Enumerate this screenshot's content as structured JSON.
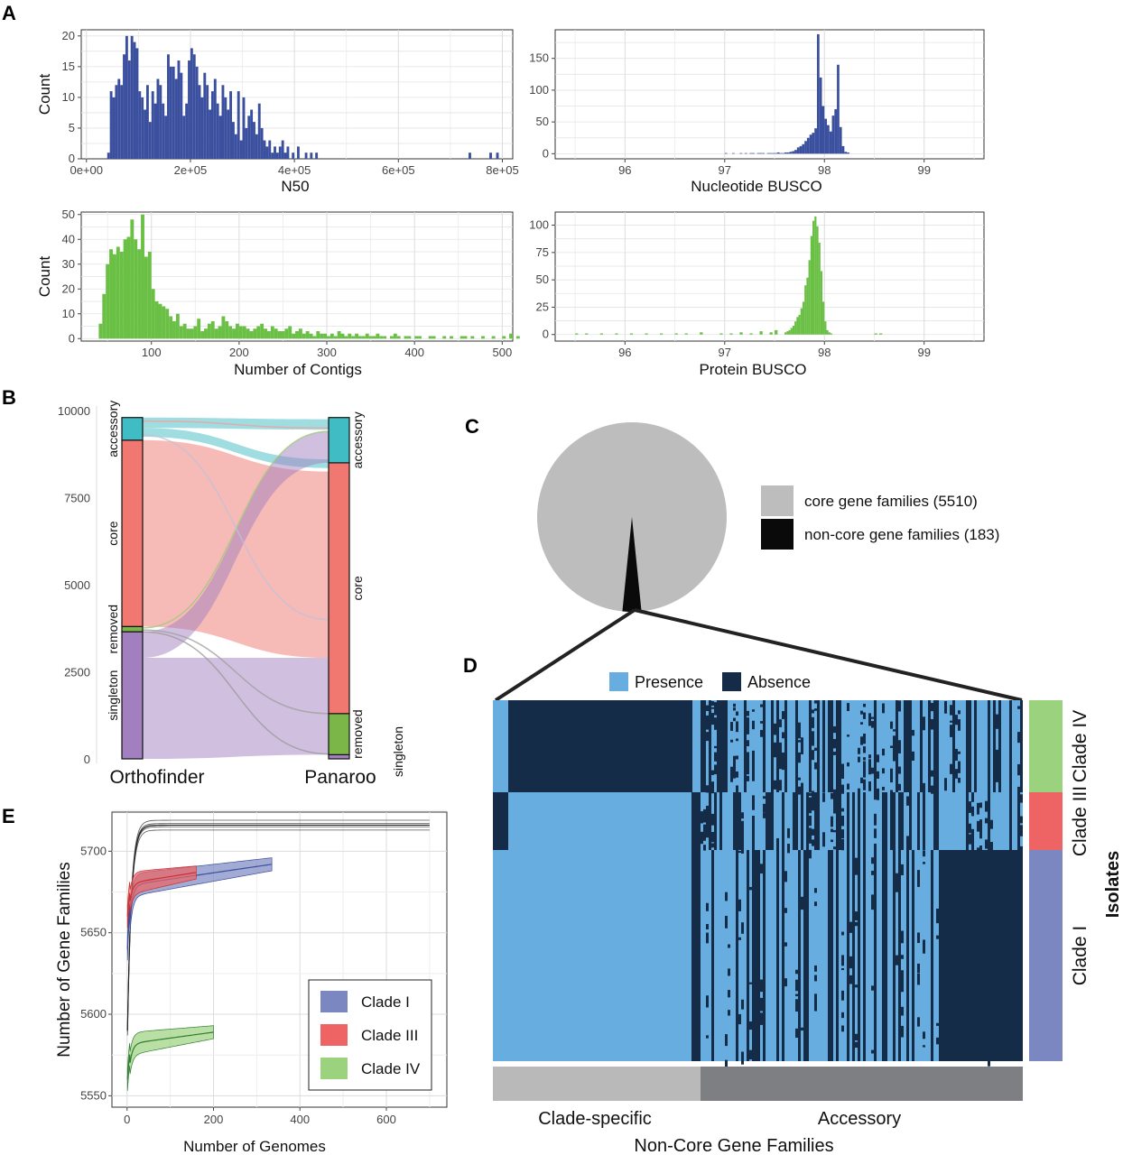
{
  "panels": {
    "A": "A",
    "B": "B",
    "C": "C",
    "D": "D",
    "E": "E"
  },
  "colors": {
    "blue": "#3b4f9f",
    "green": "#6abf45",
    "presence": "#67ade0",
    "absence": "#142c47",
    "grey_core": "#bdbdbd",
    "clade_I": "#7a87c0",
    "clade_III": "#ee6464",
    "clade_IV": "#9bd27d",
    "accessory": "#3fbcc4",
    "core": "#f07870",
    "removed": "#7ab648",
    "singleton": "#a27fbf"
  },
  "chart_data": [
    {
      "id": "n50",
      "type": "bar",
      "title": "",
      "xlabel": "N50",
      "ylabel": "Count",
      "xlim": [
        -10000,
        820000
      ],
      "ylim": [
        0,
        21
      ],
      "xticks": [
        "0e+00",
        "2e+05",
        "4e+05",
        "6e+05",
        "8e+05"
      ],
      "xtick_values": [
        0,
        200000,
        400000,
        600000,
        800000
      ],
      "yticks": [
        0,
        5,
        10,
        15,
        20
      ],
      "bin_start": 40000,
      "bin_width": 5000,
      "values": [
        1,
        11,
        10,
        12,
        13,
        12,
        17,
        20,
        16,
        20,
        19,
        18,
        11,
        10,
        8,
        12,
        6,
        11,
        9,
        13,
        12,
        9,
        7,
        17,
        15,
        15,
        13,
        16,
        14,
        7,
        9,
        16,
        18,
        17,
        15,
        12,
        10,
        14,
        12,
        8,
        11,
        13,
        9,
        7,
        12,
        10,
        8,
        11,
        6,
        4,
        11,
        3,
        10,
        5,
        7,
        8,
        6,
        4,
        9,
        5,
        3,
        2,
        3,
        1,
        2,
        1,
        2,
        3,
        1,
        2,
        0,
        1,
        0,
        2,
        0,
        0,
        1,
        0,
        1,
        0,
        1
      ],
      "outliers": [
        [
          735000,
          1
        ],
        [
          775000,
          1
        ],
        [
          788000,
          1
        ]
      ],
      "color": "#3b4f9f"
    },
    {
      "id": "nucleotide_busco",
      "type": "bar",
      "title": "",
      "xlabel": "Nucleotide BUSCO",
      "ylabel": "",
      "xlim": [
        95.3,
        99.6
      ],
      "ylim": [
        -8,
        195
      ],
      "xticks": [
        "96",
        "97",
        "98",
        "99"
      ],
      "xtick_values": [
        96,
        97,
        98,
        99
      ],
      "yticks": [
        0,
        50,
        100,
        150
      ],
      "bin_start": 97.0,
      "bin_width": 0.025,
      "values": [
        1,
        0,
        0,
        1,
        0,
        0,
        1,
        0,
        1,
        0,
        1,
        1,
        0,
        1,
        1,
        1,
        0,
        1,
        1,
        1,
        1,
        2,
        1,
        1,
        2,
        2,
        3,
        4,
        6,
        10,
        12,
        15,
        20,
        25,
        30,
        33,
        40,
        188,
        120,
        75,
        55,
        45,
        35,
        60,
        70,
        140,
        42,
        12,
        3,
        2
      ],
      "color": "#3b4f9f"
    },
    {
      "id": "contigs",
      "type": "bar",
      "title": "",
      "xlabel": "Number of Contigs",
      "ylabel": "Count",
      "xlim": [
        20,
        512
      ],
      "ylim": [
        -1,
        51
      ],
      "xticks": [
        "100",
        "200",
        "300",
        "400",
        "500"
      ],
      "xtick_values": [
        100,
        200,
        300,
        400,
        500
      ],
      "yticks": [
        0,
        10,
        20,
        30,
        40,
        50
      ],
      "bin_start": 40,
      "bin_width": 4,
      "values": [
        6,
        18,
        30,
        36,
        34,
        37,
        35,
        40,
        41,
        48,
        40,
        36,
        50,
        33,
        35,
        20,
        15,
        14,
        13,
        12,
        9,
        7,
        10,
        5,
        6,
        4,
        4,
        5,
        8,
        3,
        4,
        6,
        7,
        4,
        5,
        9,
        7,
        5,
        4,
        6,
        5,
        5,
        4,
        3,
        4,
        5,
        6,
        4,
        3,
        5,
        4,
        3,
        3,
        4,
        5,
        2,
        3,
        4,
        2,
        3,
        2,
        1,
        3,
        2,
        2,
        1,
        2,
        1,
        3,
        2,
        1,
        2,
        1,
        2,
        1,
        1,
        2,
        1,
        1,
        2,
        1,
        1,
        0,
        1,
        2,
        1,
        0,
        1,
        1,
        0,
        1,
        1,
        0,
        0,
        1,
        1,
        0,
        0,
        1,
        0,
        1,
        0,
        0,
        1,
        1,
        0,
        1,
        0,
        0,
        1,
        0,
        0,
        1,
        0,
        0,
        1,
        0,
        2,
        0,
        1
      ],
      "color": "#6abf45"
    },
    {
      "id": "protein_busco",
      "type": "bar",
      "title": "",
      "xlabel": "Protein BUSCO",
      "ylabel": "",
      "xlim": [
        95.3,
        99.6
      ],
      "ylim": [
        -6,
        112
      ],
      "xticks": [
        "96",
        "97",
        "98",
        "99"
      ],
      "xtick_values": [
        96,
        97,
        98,
        99
      ],
      "yticks": [
        0,
        25,
        50,
        75,
        100
      ],
      "bin_start": 97.6,
      "bin_width": 0.02,
      "values": [
        2,
        3,
        4,
        6,
        8,
        12,
        16,
        18,
        24,
        30,
        45,
        52,
        68,
        90,
        104,
        108,
        99,
        84,
        58,
        30,
        12,
        4,
        2,
        1
      ],
      "sparse": [
        [
          95.5,
          1
        ],
        [
          95.6,
          1
        ],
        [
          95.75,
          1
        ],
        [
          95.9,
          1
        ],
        [
          96.05,
          1
        ],
        [
          96.2,
          1
        ],
        [
          96.35,
          1
        ],
        [
          96.5,
          1
        ],
        [
          96.6,
          1
        ],
        [
          96.75,
          2
        ],
        [
          96.95,
          1
        ],
        [
          97.05,
          1
        ],
        [
          97.15,
          2
        ],
        [
          97.25,
          1
        ],
        [
          97.35,
          3
        ],
        [
          97.45,
          2
        ],
        [
          97.5,
          4
        ],
        [
          98.5,
          1
        ],
        [
          98.55,
          1
        ]
      ],
      "color": "#6abf45"
    },
    {
      "id": "alluvial",
      "type": "alluvial",
      "title": "",
      "ylim": [
        0,
        10000
      ],
      "yticks": [
        0,
        2500,
        5000,
        7500,
        10000
      ],
      "axes": [
        "Orthofinder",
        "Panaroo"
      ],
      "left_strata": [
        {
          "label": "singleton",
          "from": 0,
          "to": 3650,
          "color": "#a27fbf"
        },
        {
          "label": "removed",
          "from": 3650,
          "to": 3800,
          "color": "#7ab648"
        },
        {
          "label": "core",
          "from": 3800,
          "to": 9150,
          "color": "#f07870"
        },
        {
          "label": "accessory",
          "from": 9150,
          "to": 9800,
          "color": "#3fbcc4"
        }
      ],
      "right_strata": [
        {
          "label": "singleton",
          "from": 0,
          "to": 120,
          "color": "#a27fbf"
        },
        {
          "label": "removed",
          "from": 120,
          "to": 1300,
          "color": "#7ab648"
        },
        {
          "label": "core",
          "from": 1300,
          "to": 8500,
          "color": "#f07870"
        },
        {
          "label": "accessory",
          "from": 8500,
          "to": 9800,
          "color": "#3fbcc4"
        }
      ],
      "flows": [
        {
          "l": [
            9500,
            9800
          ],
          "r": [
            9450,
            9750
          ],
          "color": "#3fbcc4"
        },
        {
          "l": [
            9250,
            9500
          ],
          "r": [
            8350,
            8600
          ],
          "color": "#3fbcc4"
        },
        {
          "l": [
            3800,
            9150
          ],
          "r": [
            2900,
            8250
          ],
          "color": "#f07870"
        },
        {
          "l": [
            2900,
            3650
          ],
          "r": [
            8500,
            9400
          ],
          "color": "#a27fbf"
        },
        {
          "l": [
            0,
            2900
          ],
          "r": [
            120,
            2900
          ],
          "color": "#a27fbf"
        }
      ]
    },
    {
      "id": "gene_family_pie",
      "type": "pie",
      "title": "",
      "slices": [
        {
          "label": "core gene families (5510)",
          "value": 5510,
          "color": "#bdbdbd"
        },
        {
          "label": "non-core gene families (183)",
          "value": 183,
          "color": "#0a0a0a"
        }
      ]
    },
    {
      "id": "presence_absence",
      "type": "heatmap",
      "title": "",
      "legend": [
        "Presence",
        "Absence"
      ],
      "xlabel": "Non-Core Gene Families",
      "column_groups": [
        "Clade-specific",
        "Accessory"
      ],
      "row_label": "Isolates",
      "row_groups": [
        {
          "label": "Clade IV",
          "fraction": 0.255,
          "color": "#9bd27d"
        },
        {
          "label": "Clade III",
          "fraction": 0.16,
          "color": "#ee6464"
        },
        {
          "label": "Clade I",
          "fraction": 0.585,
          "color": "#7a87c0"
        }
      ]
    },
    {
      "id": "accumulation",
      "type": "line",
      "title": "",
      "xlabel": "Number of Genomes",
      "ylabel": "Number of Gene Families",
      "xlim": [
        -35,
        740
      ],
      "ylim": [
        5543,
        5724
      ],
      "xticks": [
        0,
        200,
        400,
        600
      ],
      "yticks": [
        5550,
        5600,
        5650,
        5700
      ],
      "series": [
        {
          "name": "",
          "color": "#222222",
          "n": 700,
          "start": 5590,
          "end": 5716,
          "k": 8
        },
        {
          "name": "Clade I",
          "color": "#3b4f9f",
          "fill": "#7a87c0",
          "n": 335,
          "start": 5640,
          "end": 5692,
          "k": 6
        },
        {
          "name": "Clade III",
          "color": "#cc3030",
          "fill": "#ee6464",
          "n": 160,
          "start": 5660,
          "end": 5687,
          "k": 6
        },
        {
          "name": "Clade IV",
          "color": "#2e7d32",
          "fill": "#9bd27d",
          "n": 200,
          "start": 5560,
          "end": 5589,
          "k": 6
        }
      ],
      "legend": [
        "Clade I",
        "Clade III",
        "Clade IV"
      ]
    }
  ]
}
